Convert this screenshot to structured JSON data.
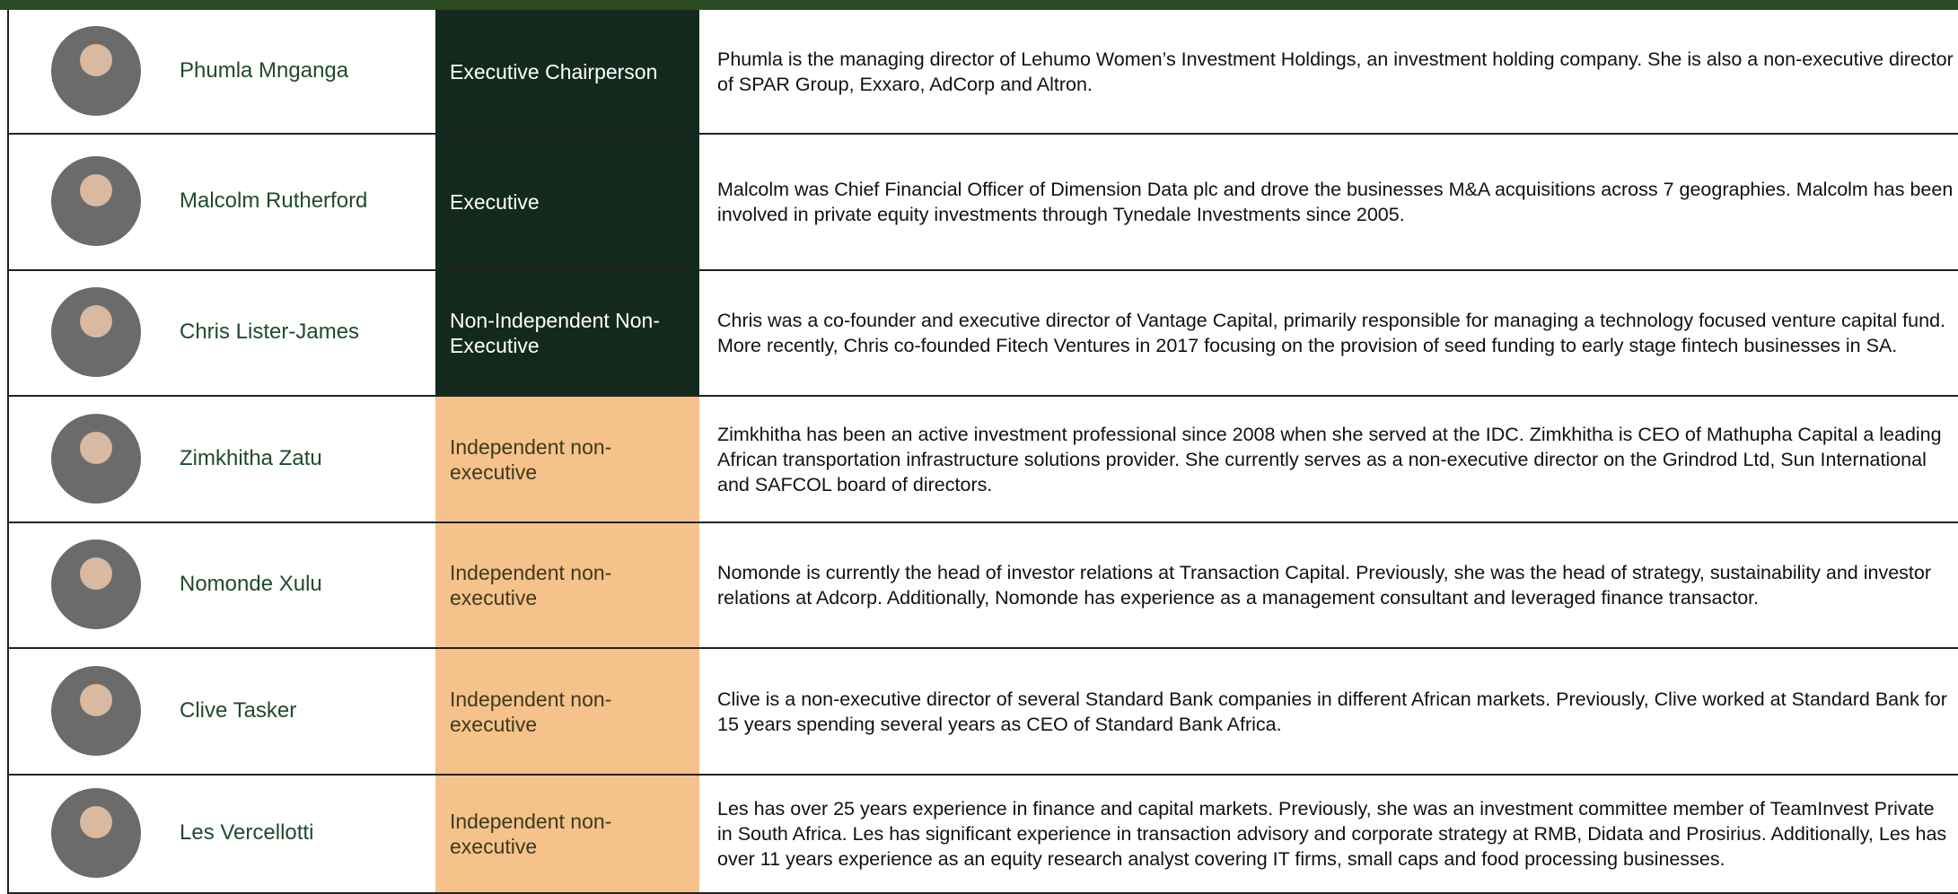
{
  "rows": [
    {
      "name": "Phumla Mnganga",
      "role": "Executive Chairperson",
      "bio": "Phumla is the managing director of Lehumo Women’s Investment Holdings, an investment holding company. She is also a non-executive director of SPAR Group, Exxaro, AdCorp and Altron."
    },
    {
      "name": "Malcolm Rutherford",
      "role": "Executive",
      "bio": "Malcolm was Chief Financial Officer of Dimension Data plc and drove the businesses M&A acquisitions across 7 geographies. Malcolm has been involved in private equity investments through Tynedale Investments since 2005."
    },
    {
      "name": "Chris Lister-James",
      "role": "Non-Independent Non-Executive",
      "bio": "Chris was a co-founder and executive director of Vantage Capital, primarily responsible for managing a technology focused venture capital fund. More recently, Chris co-founded Fitech Ventures  in 2017 focusing on the provision of seed funding to early stage fintech businesses in SA."
    },
    {
      "name": "Zimkhitha Zatu",
      "role": "Independent non-executive",
      "bio": "Zimkhitha has been an active investment professional since 2008 when she served at the IDC. Zimkhitha is CEO of Mathupha Capital a leading African transportation infrastructure solutions provider. She currently serves as a non-executive director on the Grindrod Ltd, Sun International and SAFCOL board of directors."
    },
    {
      "name": "Nomonde Xulu",
      "role": "Independent non-executive",
      "bio": "Nomonde is currently the head of investor relations at Transaction Capital. Previously, she was the head of strategy, sustainability and investor relations at Adcorp. Additionally, Nomonde has experience as a management consultant and leveraged finance transactor."
    },
    {
      "name": "Clive Tasker",
      "role": "Independent non-executive",
      "bio": "Clive is a non-executive director of several Standard Bank companies in different African markets. Previously, Clive worked at Standard Bank for 15 years spending several years as CEO of Standard Bank Africa."
    },
    {
      "name": "Les Vercellotti",
      "role": "Independent non-executive",
      "bio": "Les has over 25 years experience in finance and capital markets. Previously, she was an investment committee member of TeamInvest Private in South Africa. Les has significant experience in transaction advisory and corporate strategy at RMB, Didata and Prosirius. Additionally, Les has over 11 years experience as an equity research analyst covering IT firms, small caps and food processing businesses."
    }
  ]
}
